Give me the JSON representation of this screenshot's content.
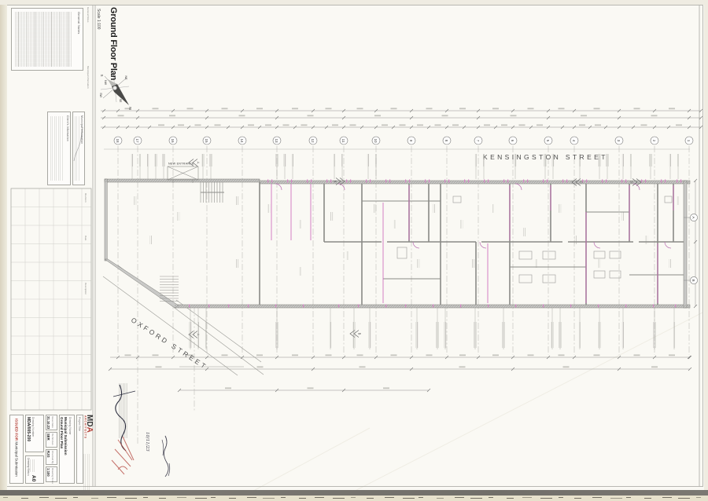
{
  "sheet": {
    "title": "Ground Floor Plan",
    "scale_label": "Scale 1:100",
    "general_notes_header": "General Notes",
    "municipal_information_header": "Municipal Information",
    "clients_information_header": "Client's Information",
    "revisions": {
      "columns": [
        "Revision",
        "Date",
        "Description"
      ]
    }
  },
  "title_block": {
    "issued_for_label": "ISSUED FOR",
    "issued_for_value": "Municipal Submission",
    "drawing_number_label": "Drawing Number",
    "drawing_number": "MDA/005-200",
    "drawing_status_label": "Drawing Status",
    "paper_size": "A0",
    "fields": [
      {
        "label": "Issue Date",
        "value": "31.10.23"
      },
      {
        "label": "Technician",
        "value": "SER"
      },
      {
        "label": "Checked By",
        "value": "RJG"
      },
      {
        "label": "Drawing Scale",
        "value": "1:100"
      }
    ],
    "drawing_name_label": "Drawing Name",
    "drawing_name_line1": "Municipal Submission",
    "drawing_name_line2": "Ground Floor Plan",
    "project_title_label": "Project Title",
    "logo": {
      "l1": "M",
      "l2": "D",
      "l3": "A",
      "sub": "ARCHITECTS"
    }
  },
  "plan": {
    "streets": {
      "top": "KENSINGSTON STREET",
      "diagonal": "OXFORD STREET"
    },
    "entrance_label": "NEW ENTRANCE",
    "grid_numbers": [
      "1",
      "2",
      "3",
      "4",
      "5",
      "6",
      "7",
      "8",
      "9",
      "10",
      "11",
      "12",
      "13",
      "14",
      "15",
      "16",
      "17",
      "18"
    ],
    "grid_letters": [
      "A",
      "B"
    ],
    "section_markers": [
      "A",
      "B",
      "C",
      "D"
    ],
    "compass": {
      "n": "N",
      "s": "S",
      "ne": "NE",
      "nw": "NW",
      "se": "SE",
      "sw": "SW"
    }
  },
  "annotations": {
    "handwritten_date": "10/11/23"
  },
  "colors": {
    "accent_red": "#b5423a",
    "new_work_magenta": "#c878be"
  }
}
